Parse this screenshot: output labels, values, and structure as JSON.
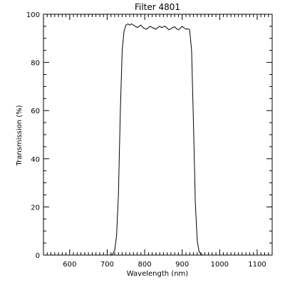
{
  "chart_data": {
    "type": "line",
    "title": "Filter 4801",
    "xlabel": "Wavelength (nm)",
    "ylabel": "Transmission (%)",
    "xlim": [
      530,
      1140
    ],
    "ylim": [
      0,
      100
    ],
    "grid": false,
    "x_ticks": [
      600,
      700,
      800,
      900,
      1000,
      1100
    ],
    "y_ticks": [
      0,
      20,
      40,
      60,
      80,
      100
    ],
    "series": [
      {
        "color": "#000000",
        "x": [
          700,
          710,
          715,
          720,
          725,
          730,
          735,
          740,
          745,
          750,
          755,
          760,
          765,
          770,
          775,
          780,
          785,
          790,
          795,
          800,
          805,
          810,
          815,
          820,
          825,
          830,
          835,
          840,
          845,
          850,
          855,
          860,
          865,
          870,
          875,
          880,
          885,
          890,
          895,
          900,
          905,
          910,
          915,
          920,
          925,
          930,
          935,
          940,
          945,
          950,
          955,
          960
        ],
        "y": [
          0,
          0,
          0.5,
          2,
          8,
          25,
          60,
          85,
          93,
          95.5,
          96,
          95.5,
          96,
          95.5,
          95,
          94.5,
          95,
          95.5,
          94.5,
          94,
          93.8,
          94.5,
          95,
          94.5,
          94.2,
          93.8,
          94.5,
          95,
          94.5,
          94.8,
          95,
          94.2,
          93.5,
          94,
          94.5,
          94.8,
          94,
          93.5,
          94.2,
          95,
          94.3,
          93.8,
          94,
          93.5,
          85,
          55,
          22,
          6,
          1.5,
          0.3,
          0,
          0
        ]
      }
    ]
  }
}
